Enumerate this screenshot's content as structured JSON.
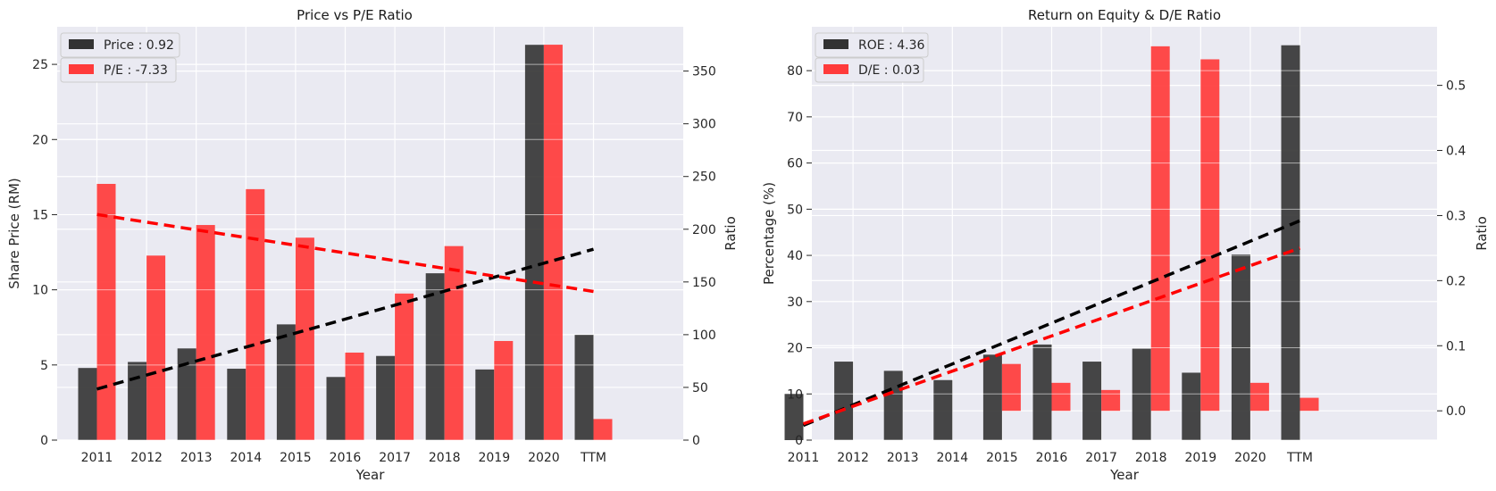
{
  "chart_data": [
    {
      "type": "bar",
      "title": "Price vs P/E Ratio",
      "xlabel": "Year",
      "ylabel_left": "Share Price (RM)",
      "ylabel_right": "Ratio",
      "categories": [
        "2011",
        "2012",
        "2013",
        "2014",
        "2015",
        "2016",
        "2017",
        "2018",
        "2019",
        "2020",
        "TTM"
      ],
      "ylim_left": [
        0,
        27.5
      ],
      "ylim_right": [
        0,
        392
      ],
      "yticks_left": [
        0,
        5,
        10,
        15,
        20,
        25
      ],
      "yticks_right": [
        0,
        50,
        100,
        150,
        200,
        250,
        300,
        350
      ],
      "grid": true,
      "legend_position": "top-left",
      "series": [
        {
          "name": "Price : 0.92",
          "axis": "left",
          "color": "#333333",
          "values": [
            4.8,
            5.2,
            6.1,
            4.75,
            7.7,
            4.2,
            5.6,
            11.1,
            4.7,
            26.3,
            7.0
          ]
        },
        {
          "name": "P/E : -7.33",
          "axis": "right",
          "color": "#ff3b3b",
          "values": [
            243,
            175,
            204,
            238,
            192,
            83,
            139,
            184,
            94,
            375,
            20
          ]
        }
      ],
      "trendlines": [
        {
          "axis": "left",
          "color": "#000000",
          "from": [
            0,
            3.4
          ],
          "to": [
            10,
            12.7
          ]
        },
        {
          "axis": "right",
          "color": "#ff0000",
          "from": [
            0,
            214
          ],
          "to": [
            10,
            141
          ]
        }
      ]
    },
    {
      "type": "bar",
      "title": "Return on Equity & D/E Ratio",
      "xlabel": "Year",
      "ylabel_left": "Percentage (%)",
      "ylabel_right": "Ratio",
      "categories": [
        "2011",
        "2012",
        "2013",
        "2014",
        "2015",
        "2016",
        "2017",
        "2018",
        "2019",
        "2020",
        "TTM"
      ],
      "ylim_left": [
        0,
        89.5
      ],
      "ylim_right": [
        -0.045,
        0.59
      ],
      "yticks_left": [
        0,
        10,
        20,
        30,
        40,
        50,
        60,
        70,
        80
      ],
      "yticks_right": [
        "0.0",
        "0.1",
        "0.2",
        "0.3",
        "0.4",
        "0.5"
      ],
      "grid": true,
      "legend_position": "top-left",
      "series": [
        {
          "name": "ROE : 4.36",
          "axis": "left",
          "color": "#333333",
          "values": [
            10,
            17,
            15,
            13,
            18.5,
            20.7,
            17,
            19.8,
            14.6,
            40.2,
            85.5
          ]
        },
        {
          "name": "D/E : 0.03",
          "axis": "right",
          "color": "#ff3b3b",
          "values": [
            null,
            null,
            null,
            null,
            0.072,
            0.043,
            0.032,
            0.56,
            0.54,
            0.043,
            0.02
          ]
        }
      ],
      "trendlines": [
        {
          "axis": "left",
          "color": "#000000",
          "from": [
            0,
            3.2
          ],
          "to": [
            10,
            47.5
          ]
        },
        {
          "axis": "right",
          "color": "#ff0000",
          "from": [
            0,
            -0.02
          ],
          "to": [
            10,
            0.25
          ]
        }
      ]
    }
  ]
}
